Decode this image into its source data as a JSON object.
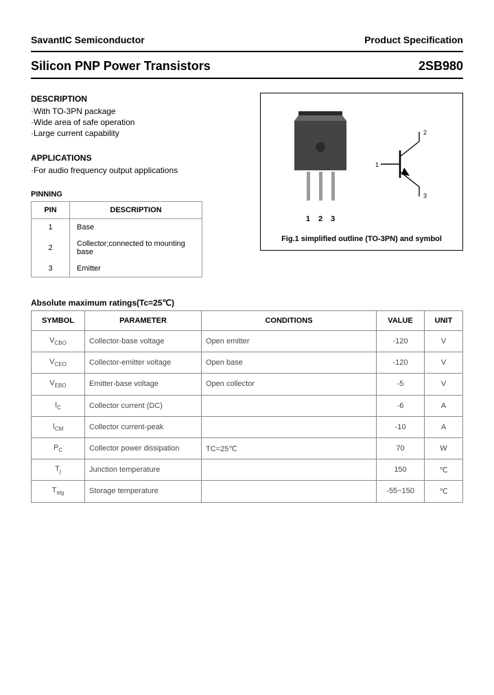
{
  "header": {
    "company": "SavantIC Semiconductor",
    "spec": "Product Specification",
    "title": "Silicon PNP Power Transistors",
    "part": "2SB980"
  },
  "description": {
    "heading": "DESCRIPTION",
    "items": [
      "·With TO-3PN package",
      "·Wide area of safe operation",
      "·Large current capability"
    ]
  },
  "applications": {
    "heading": "APPLICATIONS",
    "items": [
      "·For audio frequency output applications"
    ]
  },
  "pinning": {
    "heading": "PINNING",
    "col1": "PIN",
    "col2": "DESCRIPTION",
    "rows": [
      {
        "pin": "1",
        "desc": "Base"
      },
      {
        "pin": "2",
        "desc": "Collector;connected to mounting base"
      },
      {
        "pin": "3",
        "desc": "Emitter"
      }
    ]
  },
  "figure": {
    "caption": "Fig.1 simplified outline (TO-3PN) and symbol",
    "pin1": "1",
    "pin2": "2",
    "pin3": "3",
    "sym1": "1",
    "sym2": "2",
    "sym3": "3"
  },
  "ratings": {
    "heading": "Absolute maximum ratings(Tc=25℃)",
    "cols": {
      "symbol": "SYMBOL",
      "param": "PARAMETER",
      "cond": "CONDITIONS",
      "value": "VALUE",
      "unit": "UNIT"
    },
    "rows": [
      {
        "sym": "V",
        "sub": "CBO",
        "param": "Collector-base voltage",
        "cond": "Open emitter",
        "value": "-120",
        "unit": "V"
      },
      {
        "sym": "V",
        "sub": "CEO",
        "param": "Collector-emitter voltage",
        "cond": "Open base",
        "value": "-120",
        "unit": "V"
      },
      {
        "sym": "V",
        "sub": "EBO",
        "param": "Emitter-base voltage",
        "cond": "Open collector",
        "value": "-5",
        "unit": "V"
      },
      {
        "sym": "I",
        "sub": "C",
        "param": "Collector current (DC)",
        "cond": "",
        "value": "-6",
        "unit": "A"
      },
      {
        "sym": "I",
        "sub": "CM",
        "param": "Collector current-peak",
        "cond": "",
        "value": "-10",
        "unit": "A"
      },
      {
        "sym": "P",
        "sub": "C",
        "param": "Collector power dissipation",
        "cond": "TC=25℃",
        "value": "70",
        "unit": "W"
      },
      {
        "sym": "T",
        "sub": "j",
        "param": "Junction temperature",
        "cond": "",
        "value": "150",
        "unit": "℃"
      },
      {
        "sym": "T",
        "sub": "stg",
        "param": "Storage temperature",
        "cond": "",
        "value": "-55~150",
        "unit": "℃"
      }
    ]
  },
  "colors": {
    "border": "#888888",
    "text": "#000000",
    "dimtext": "#444444"
  }
}
